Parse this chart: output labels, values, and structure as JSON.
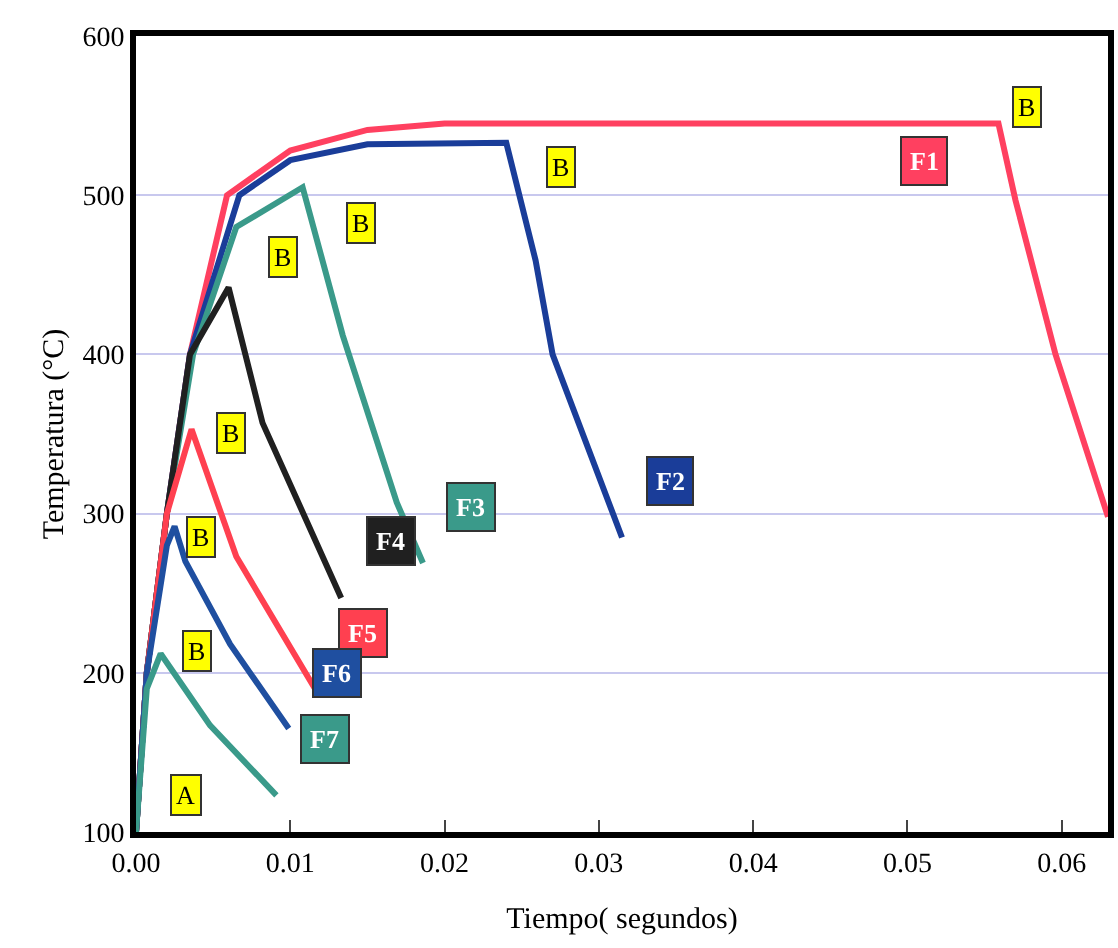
{
  "chart_data": {
    "type": "line",
    "xlabel": "Tiempo( segundos)",
    "ylabel": "Temperatura (°C)",
    "xlim": [
      0,
      0.063
    ],
    "xticks": [
      {
        "value": 0,
        "label": "0.00"
      },
      {
        "value": 0.01,
        "label": "0.01"
      },
      {
        "value": 0.02,
        "label": "0.02"
      },
      {
        "value": 0.03,
        "label": "0.03"
      },
      {
        "value": 0.04,
        "label": "0.04"
      },
      {
        "value": 0.05,
        "label": "0.05"
      },
      {
        "value": 0.06,
        "label": "0.06"
      }
    ],
    "ylim": [
      100,
      600
    ],
    "yticks": [
      100,
      200,
      300,
      400,
      500,
      600
    ],
    "grid": "y",
    "legend": false,
    "marker": "none",
    "line_style": "solid",
    "series": [
      {
        "name": "F1",
        "color": "#ff4060",
        "x": [
          0,
          0.0007,
          0.002,
          0.0035,
          0.0059,
          0.01,
          0.015,
          0.02,
          0.0559,
          0.057,
          0.0596,
          0.063
        ],
        "values": [
          100,
          200,
          300,
          400,
          500,
          528,
          541,
          545,
          545,
          497,
          400,
          298
        ]
      },
      {
        "name": "F2",
        "color": "#1a3d99",
        "x": [
          0,
          0.0007,
          0.002,
          0.0035,
          0.0067,
          0.01,
          0.015,
          0.024,
          0.0259,
          0.027,
          0.0315
        ],
        "values": [
          100,
          200,
          300,
          400,
          500,
          522,
          532,
          533,
          459,
          400,
          285
        ]
      },
      {
        "name": "F3",
        "color": "#3a9a8a",
        "x": [
          0,
          0.0007,
          0.002,
          0.0037,
          0.0065,
          0.0108,
          0.0134,
          0.0169,
          0.0186
        ],
        "values": [
          100,
          200,
          300,
          400,
          480,
          505,
          412,
          307,
          269
        ]
      },
      {
        "name": "F4",
        "color": "#202020",
        "x": [
          0,
          0.0007,
          0.002,
          0.0035,
          0.006,
          0.0082,
          0.0133
        ],
        "values": [
          100,
          200,
          300,
          400,
          442,
          357,
          247
        ]
      },
      {
        "name": "F5",
        "color": "#ff4050",
        "x": [
          0,
          0.0007,
          0.002,
          0.0036,
          0.0065,
          0.0116
        ],
        "values": [
          100,
          200,
          300,
          353,
          273,
          190
        ]
      },
      {
        "name": "F6",
        "color": "#1f4fa0",
        "x": [
          0,
          0.0007,
          0.002,
          0.0025,
          0.0032,
          0.0061,
          0.0099
        ],
        "values": [
          100,
          200,
          280,
          292,
          270,
          218,
          165
        ]
      },
      {
        "name": "F7",
        "color": "#3a9a8a",
        "x": [
          0,
          0.0007,
          0.0016,
          0.0048,
          0.0091
        ],
        "values": [
          100,
          190,
          212,
          167,
          123
        ]
      }
    ],
    "annotations": [
      {
        "text": "A",
        "x": 0.0033,
        "y": 123
      },
      {
        "text": "B",
        "x": 0.0039,
        "y": 214
      },
      {
        "text": "B",
        "x": 0.0042,
        "y": 285
      },
      {
        "text": "B",
        "x": 0.0061,
        "y": 351
      },
      {
        "text": "B",
        "x": 0.0095,
        "y": 461
      },
      {
        "text": "B",
        "x": 0.0146,
        "y": 482
      },
      {
        "text": "B",
        "x": 0.0275,
        "y": 518
      },
      {
        "text": "B",
        "x": 0.0578,
        "y": 555
      }
    ]
  }
}
